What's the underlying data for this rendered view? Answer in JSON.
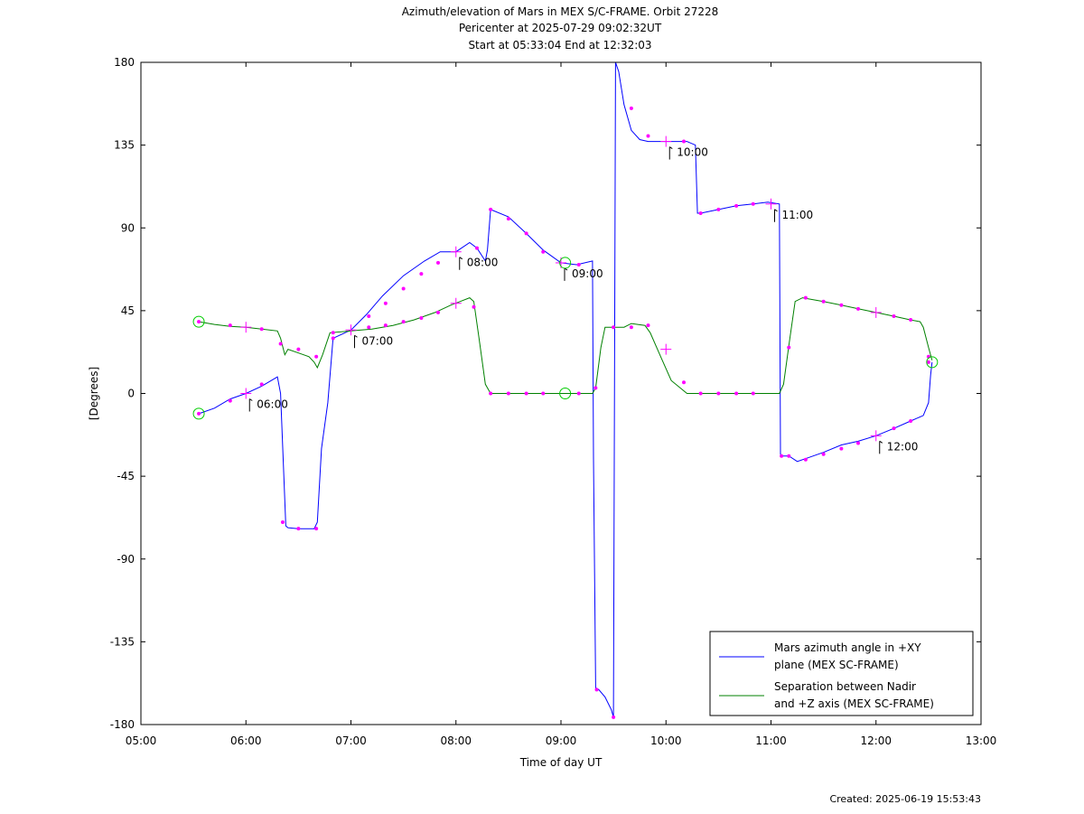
{
  "chart_data": {
    "type": "line",
    "title": "Azimuth/elevation of Mars in MEX S/C-FRAME.  Orbit 27228",
    "subtitle": "Pericenter at 2025-07-29 09:02:32UT",
    "subtitle2": "Start at 05:33:04 End at 12:32:03",
    "xlabel": "Time of day UT",
    "ylabel": "[Degrees]",
    "xlim": [
      5.0,
      13.0
    ],
    "ylim": [
      -180,
      180
    ],
    "xticks": [
      5,
      6,
      7,
      8,
      9,
      10,
      11,
      12,
      13
    ],
    "xtick_labels": [
      "05:00",
      "06:00",
      "07:00",
      "08:00",
      "09:00",
      "10:00",
      "11:00",
      "12:00",
      "13:00"
    ],
    "yticks": [
      180,
      135,
      90,
      45,
      0,
      -45,
      -90,
      -135,
      -180
    ],
    "ytick_labels": [
      "180",
      "135",
      "90",
      "45",
      "0",
      "-45",
      "-90",
      "-135",
      "-180"
    ],
    "legend_position": "bottom-right",
    "series": [
      {
        "name": "Mars azimuth angle in +XY plane (MEX SC-FRAME)",
        "legend_lines": [
          "Mars azimuth angle in +XY",
          "plane (MEX SC-FRAME)"
        ],
        "color": "#0000ff",
        "x": [
          5.551,
          5.7,
          5.85,
          6.0,
          6.15,
          6.3,
          6.33,
          6.38,
          6.4,
          6.5,
          6.65,
          6.68,
          6.72,
          6.78,
          6.83,
          7.0,
          7.15,
          7.3,
          7.5,
          7.7,
          7.85,
          8.0,
          8.13,
          8.2,
          8.28,
          8.3,
          8.33,
          8.5,
          8.67,
          8.83,
          9.0,
          9.15,
          9.3,
          9.31,
          9.33,
          9.36,
          9.42,
          9.48,
          9.5,
          9.52,
          9.55,
          9.6,
          9.67,
          9.75,
          9.83,
          9.92,
          10.0,
          10.08,
          10.2,
          10.28,
          10.3,
          10.33,
          10.5,
          10.67,
          10.83,
          10.97,
          11.08,
          11.09,
          11.11,
          11.17,
          11.25,
          11.35,
          11.5,
          11.67,
          11.83,
          12.0,
          12.17,
          12.33,
          12.45,
          12.5,
          12.52,
          12.534
        ],
        "y": [
          -11,
          -8,
          -3,
          0,
          4,
          9,
          0,
          -72,
          -73,
          -73.5,
          -73.5,
          -70,
          -30,
          -5,
          30,
          34.5,
          43,
          53,
          64,
          72,
          77,
          77,
          82,
          79,
          72,
          78,
          100,
          96,
          87,
          78,
          71,
          70,
          72,
          -35,
          -160,
          -161,
          -165,
          -172,
          -176,
          180,
          175,
          157,
          143,
          138,
          137,
          137,
          137,
          137,
          137,
          135,
          98,
          98,
          100,
          102,
          103,
          104,
          103,
          -33,
          -34,
          -34,
          -37,
          -35,
          -32,
          -28,
          -26,
          -23,
          -19,
          -15,
          -12,
          -5,
          10,
          17
        ],
        "markers_x": [
          5.551,
          5.85,
          6.15,
          6.35,
          6.5,
          6.67,
          6.83,
          7.17,
          7.33,
          7.5,
          7.67,
          7.83,
          8.2,
          8.33,
          8.5,
          8.67,
          8.83,
          9.17,
          9.34,
          9.5,
          9.67,
          9.83,
          10.17,
          10.33,
          10.5,
          10.67,
          10.83,
          11.1,
          11.17,
          11.33,
          11.5,
          11.67,
          11.83,
          12.17,
          12.33,
          12.5
        ],
        "markers_y": [
          -11,
          -4,
          5,
          -70,
          -73.5,
          -73.5,
          30,
          42,
          49,
          57,
          65,
          71,
          79,
          100,
          95,
          87,
          77,
          70,
          -161,
          -176,
          155,
          140,
          137,
          98,
          100,
          102,
          103,
          -34,
          -34,
          -36,
          -33,
          -30,
          -27,
          -19,
          -15,
          17
        ]
      },
      {
        "name": "Separation between Nadir and +Z axis (MEX SC-FRAME)",
        "legend_lines": [
          "Separation between Nadir",
          "and +Z axis (MEX SC-FRAME)"
        ],
        "color": "#008000",
        "x": [
          5.551,
          5.7,
          5.85,
          6.0,
          6.15,
          6.3,
          6.33,
          6.37,
          6.4,
          6.5,
          6.6,
          6.65,
          6.68,
          6.73,
          6.8,
          7.0,
          7.2,
          7.4,
          7.6,
          7.8,
          7.95,
          8.13,
          8.17,
          8.22,
          8.28,
          8.33,
          8.5,
          8.67,
          8.83,
          9.0,
          9.15,
          9.3,
          9.33,
          9.38,
          9.42,
          9.5,
          9.6,
          9.67,
          9.8,
          9.85,
          9.95,
          10.05,
          10.2,
          10.3,
          10.5,
          10.7,
          10.9,
          11.08,
          11.12,
          11.18,
          11.23,
          11.3,
          11.5,
          11.67,
          11.83,
          12.0,
          12.17,
          12.33,
          12.42,
          12.45,
          12.5,
          12.534
        ],
        "y": [
          39,
          37.5,
          36.5,
          36,
          35,
          34,
          30,
          21,
          24,
          22,
          20,
          17,
          14,
          21,
          33,
          34,
          35,
          37,
          40,
          44,
          48,
          52,
          50,
          30,
          5,
          0,
          0,
          0,
          0,
          0,
          0,
          0,
          3,
          25,
          36,
          36,
          36,
          38,
          37,
          33,
          20,
          7,
          0,
          0,
          0,
          0,
          0,
          0,
          5,
          30,
          50,
          52,
          50,
          48,
          46,
          44,
          42,
          40,
          39,
          36,
          25,
          18
        ],
        "markers_x": [
          5.551,
          5.85,
          6.15,
          6.33,
          6.5,
          6.67,
          6.83,
          7.17,
          7.33,
          7.5,
          7.67,
          7.83,
          8.17,
          8.33,
          8.5,
          8.67,
          8.83,
          9.17,
          9.33,
          9.5,
          9.67,
          9.83,
          10.17,
          10.33,
          10.5,
          10.67,
          10.83,
          11.17,
          11.33,
          11.5,
          11.67,
          11.83,
          12.17,
          12.33,
          12.5
        ],
        "markers_y": [
          39,
          37,
          35,
          27,
          24,
          20,
          33,
          36,
          37,
          39,
          41,
          44,
          47,
          0,
          0,
          0,
          0,
          0,
          3,
          36,
          36,
          37,
          6,
          0,
          0,
          0,
          0,
          25,
          52,
          50,
          48,
          46,
          42,
          40,
          20
        ]
      }
    ],
    "hour_markers": [
      {
        "label": "06:00",
        "x": 6.0,
        "y": 0
      },
      {
        "label": "07:00",
        "x": 7.0,
        "y": 34.5
      },
      {
        "label": "08:00",
        "x": 8.0,
        "y": 77
      },
      {
        "label": "09:00",
        "x": 9.0,
        "y": 71
      },
      {
        "label": "10:00",
        "x": 10.0,
        "y": 137
      },
      {
        "label": "11:00",
        "x": 11.0,
        "y": 103
      },
      {
        "label": "12:00",
        "x": 12.0,
        "y": -23
      }
    ],
    "cross_markers": [
      {
        "x": 6.0,
        "y": 36
      },
      {
        "x": 8.0,
        "y": 49
      },
      {
        "x": 10.0,
        "y": 24
      },
      {
        "x": 12.0,
        "y": 44
      }
    ],
    "circle_markers": [
      {
        "x": 5.551,
        "y": -11
      },
      {
        "x": 5.551,
        "y": 39
      },
      {
        "x": 9.04,
        "y": 71
      },
      {
        "x": 9.04,
        "y": 0
      },
      {
        "x": 12.534,
        "y": 17
      }
    ],
    "marker_color": "#ff00ff",
    "circle_color": "#00cc00"
  },
  "footer": {
    "created": "Created: 2025-06-19 15:53:43"
  }
}
